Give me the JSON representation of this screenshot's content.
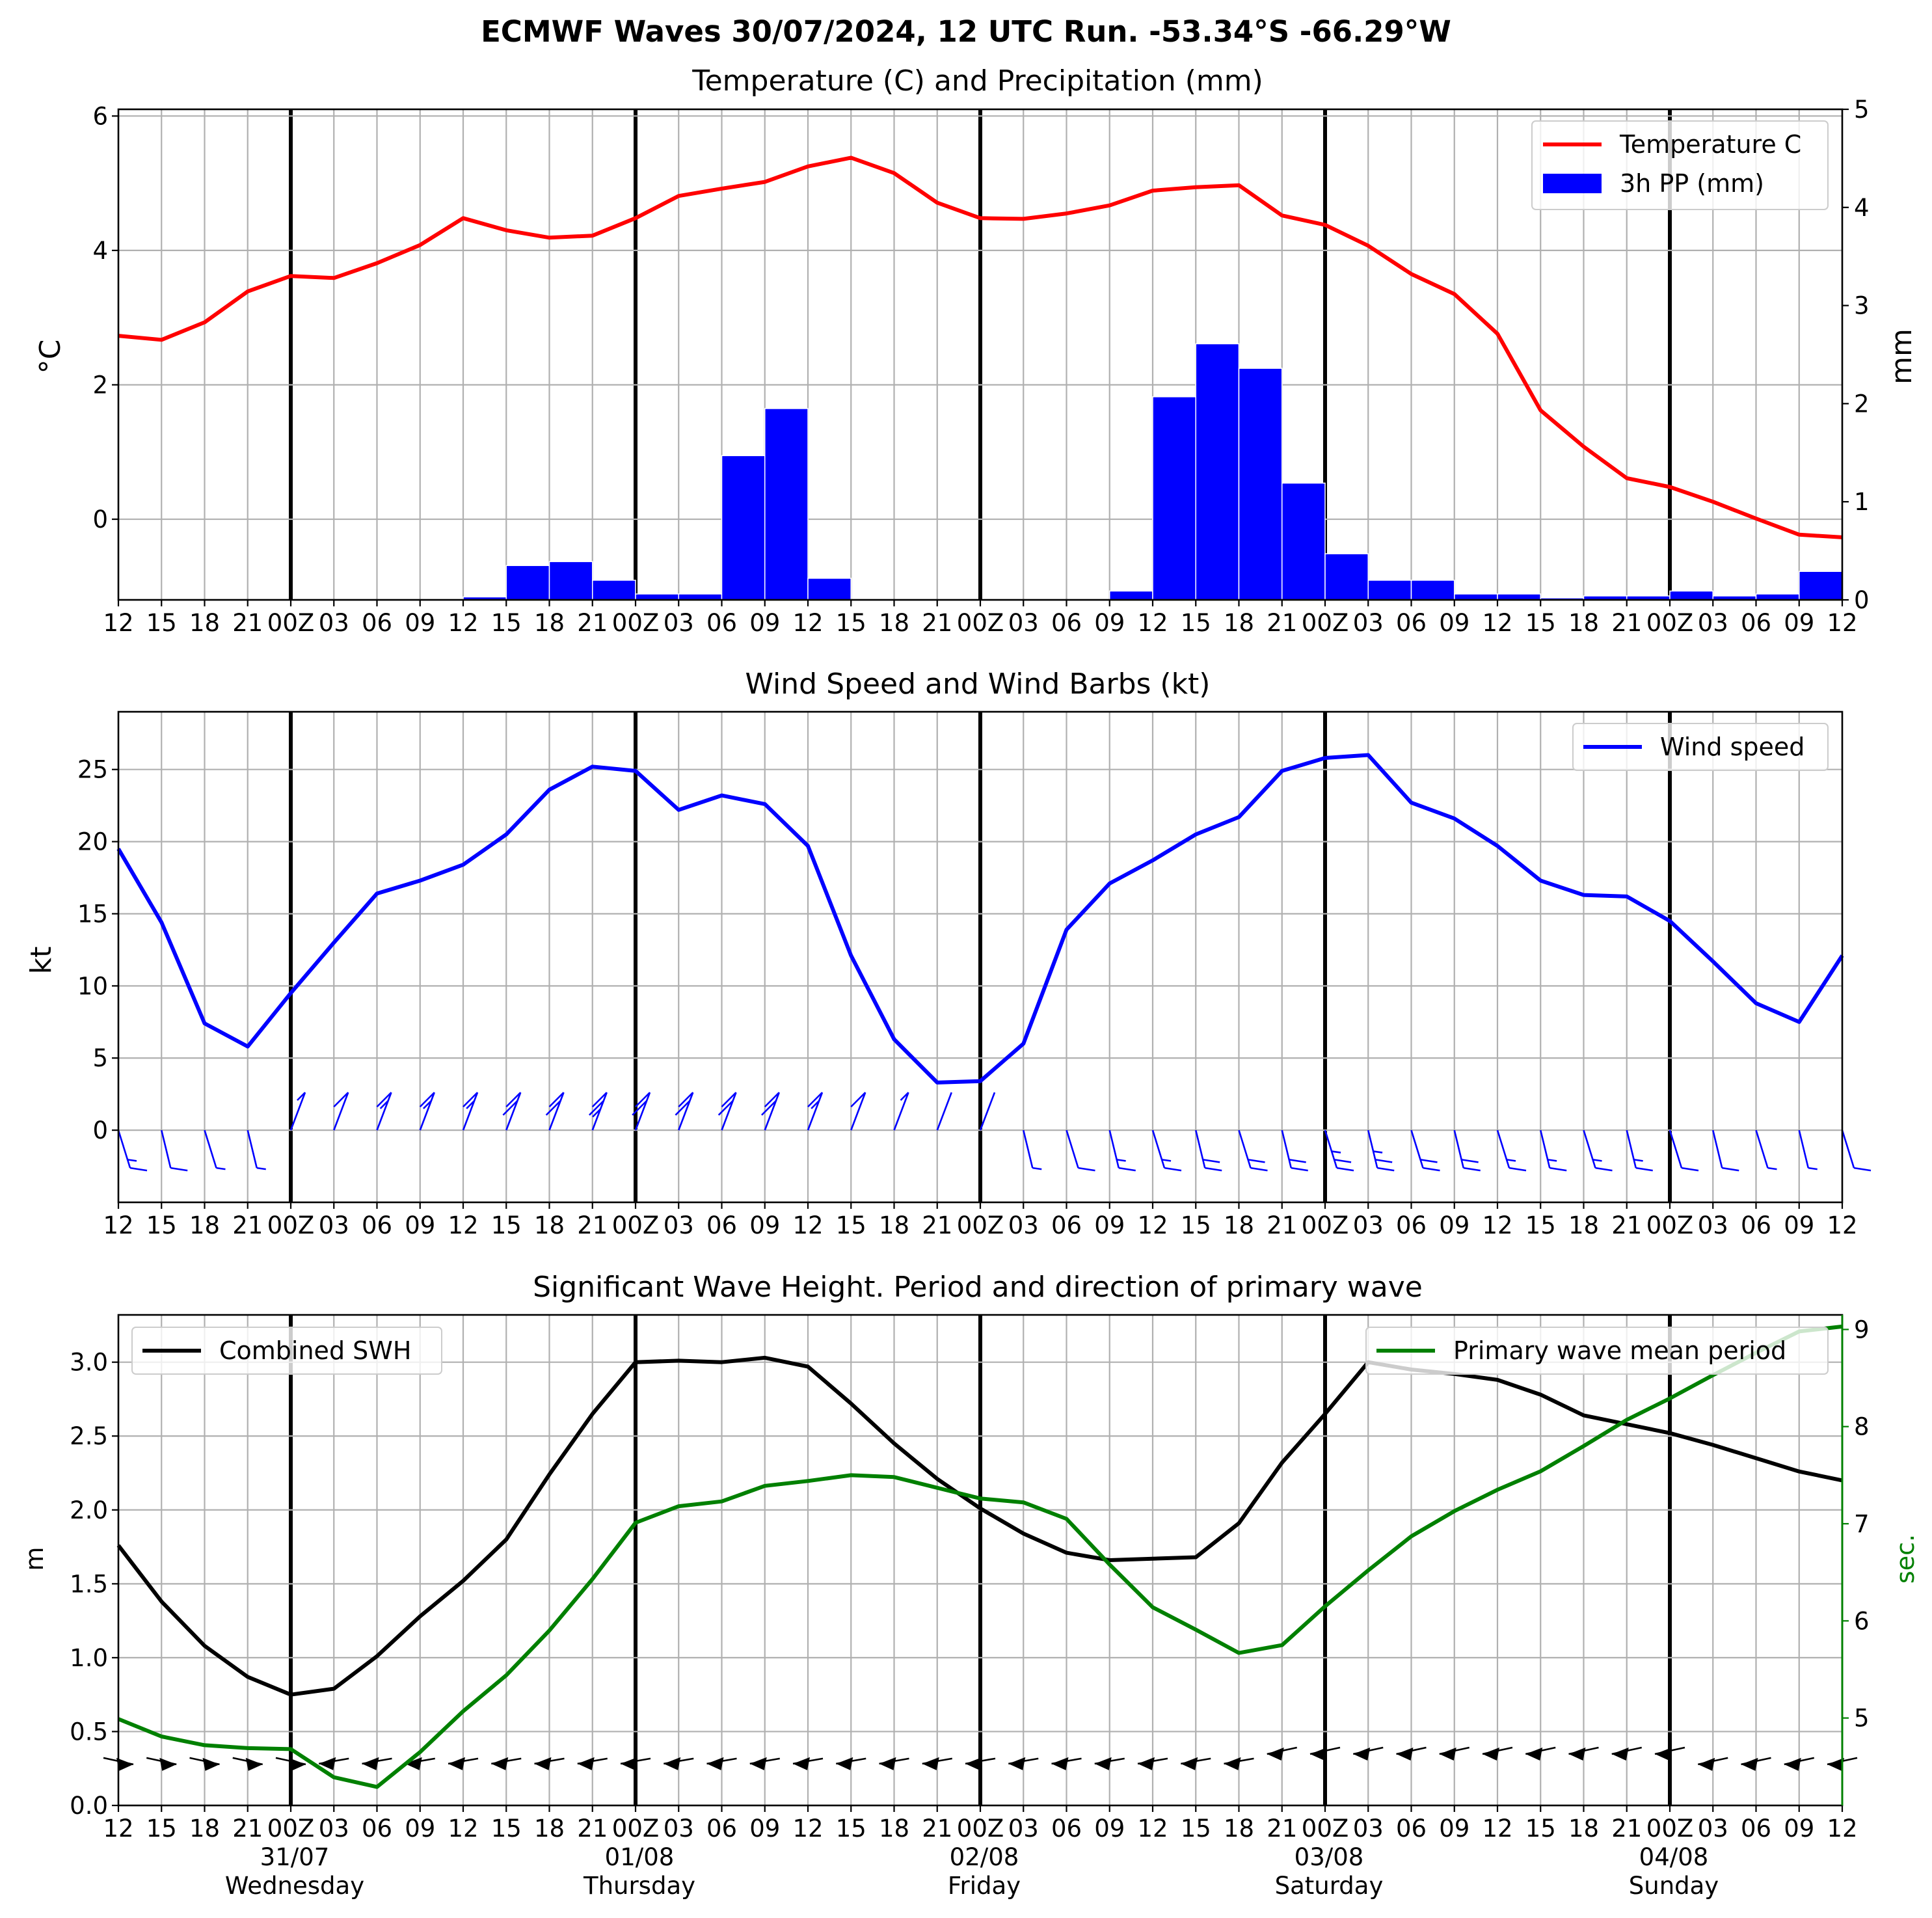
{
  "suptitle": "ECMWF Waves 30/07/2024, 12 UTC Run. -53.34°S -66.29°W",
  "x_tick_labels": [
    "12",
    "15",
    "18",
    "21",
    "00Z",
    "03",
    "06",
    "09",
    "12",
    "15",
    "18",
    "21",
    "00Z",
    "03",
    "06",
    "09",
    "12",
    "15",
    "18",
    "21",
    "00Z",
    "03",
    "06",
    "09",
    "12",
    "15",
    "18",
    "21",
    "00Z",
    "03",
    "06",
    "09",
    "12",
    "15",
    "18",
    "21",
    "00Z",
    "03",
    "06",
    "09",
    "12"
  ],
  "day_labels": [
    {
      "date": "31/07",
      "day": "Wednesday"
    },
    {
      "date": "01/08",
      "day": "Thursday"
    },
    {
      "date": "02/08",
      "day": "Friday"
    },
    {
      "date": "03/08",
      "day": "Saturday"
    },
    {
      "date": "04/08",
      "day": "Sunday"
    }
  ],
  "panels": {
    "temp": {
      "title": "Temperature (C) and Precipitation (mm)",
      "ylabel": "$^\\circ$C",
      "ylabel_right": "mm",
      "legend": [
        "Temperature C",
        "3h PP (mm)"
      ]
    },
    "wind": {
      "title": "Wind Speed and Wind Barbs (kt)",
      "ylabel": "kt",
      "legend": [
        "Wind speed"
      ]
    },
    "wave": {
      "title": "Significant Wave Height. Period and direction of primary wave",
      "ylabel": "m",
      "ylabel_right": "sec.",
      "legend_left": "Combined SWH",
      "legend_right": "Primary wave mean period"
    }
  },
  "colors": {
    "temperature": "#ff0000",
    "precip": "#0000ff",
    "wind": "#0000ff",
    "swh": "#000000",
    "period": "#008000",
    "grid": "#b0b0b0"
  },
  "chart_data": [
    {
      "type": "line",
      "title": "Temperature (C) and Precipitation (mm)",
      "xlabel": "",
      "ylabel": "°C",
      "ylim": [
        -1.2,
        6.1
      ],
      "yticks": [
        0,
        2,
        4,
        6
      ],
      "y2label": "mm",
      "y2lim": [
        0,
        5
      ],
      "y2ticks": [
        0,
        1,
        2,
        3,
        4,
        5
      ],
      "x_hours_from_run": [
        0,
        3,
        6,
        9,
        12,
        15,
        18,
        21,
        24,
        27,
        30,
        33,
        36,
        39,
        42,
        45,
        48,
        51,
        54,
        57,
        60,
        63,
        66,
        69,
        72,
        75,
        78,
        81,
        84,
        87,
        90,
        93,
        96,
        99,
        102,
        105,
        108,
        111,
        114,
        117,
        120
      ],
      "series": [
        {
          "name": "Temperature C",
          "axis": "left",
          "style": "line",
          "values": [
            2.73,
            2.67,
            2.93,
            3.39,
            3.62,
            3.59,
            3.81,
            4.08,
            4.48,
            4.3,
            4.19,
            4.22,
            4.48,
            4.81,
            4.92,
            5.02,
            5.25,
            5.38,
            5.15,
            4.71,
            4.48,
            4.47,
            4.55,
            4.67,
            4.89,
            4.94,
            4.97,
            4.52,
            4.38,
            4.07,
            3.65,
            3.35,
            2.76,
            1.62,
            1.08,
            0.61,
            0.48,
            0.26,
            0.01,
            -0.23,
            -0.27
          ]
        },
        {
          "name": "3h PP (mm)",
          "axis": "right",
          "style": "bar",
          "values": [
            0,
            0,
            0,
            0,
            0,
            0,
            0,
            0,
            0.03,
            0.35,
            0.39,
            0.2,
            0.06,
            0.06,
            1.47,
            1.95,
            0.22,
            0,
            0,
            0,
            0,
            0,
            0,
            0.09,
            2.07,
            2.61,
            2.36,
            1.19,
            0.47,
            0.2,
            0.2,
            0.06,
            0.06,
            0.02,
            0.04,
            0.04,
            0.09,
            0.04,
            0.06,
            0.29
          ]
        }
      ]
    },
    {
      "type": "line",
      "title": "Wind Speed and Wind Barbs (kt)",
      "xlabel": "",
      "ylabel": "kt",
      "ylim": [
        -5,
        29
      ],
      "yticks": [
        0,
        5,
        10,
        15,
        20,
        25
      ],
      "series": [
        {
          "name": "Wind speed",
          "values": [
            19.5,
            14.4,
            7.4,
            5.8,
            9.5,
            13.0,
            16.4,
            17.3,
            18.4,
            20.5,
            23.6,
            25.2,
            24.9,
            22.2,
            23.2,
            22.6,
            19.7,
            12.1,
            6.3,
            3.3,
            3.4,
            6.0,
            13.9,
            17.1,
            18.7,
            20.5,
            21.7,
            24.9,
            25.8,
            26.0,
            22.7,
            21.6,
            19.7,
            17.3,
            16.3,
            16.2,
            14.5,
            11.7,
            8.8,
            7.5,
            12.1
          ]
        }
      ]
    },
    {
      "type": "line",
      "title": "Significant Wave Height. Period and direction of primary wave",
      "xlabel": "",
      "ylabel": "m",
      "ylim": [
        0,
        3.32
      ],
      "yticks": [
        0.0,
        0.5,
        1.0,
        1.5,
        2.0,
        2.5,
        3.0
      ],
      "y2label": "sec.",
      "y2lim": [
        4.1,
        9.15
      ],
      "y2ticks": [
        5,
        6,
        7,
        8,
        9
      ],
      "series": [
        {
          "name": "Combined SWH",
          "axis": "left",
          "values": [
            1.76,
            1.38,
            1.08,
            0.87,
            0.75,
            0.79,
            1.01,
            1.28,
            1.52,
            1.8,
            2.24,
            2.65,
            3.0,
            3.01,
            3.0,
            3.03,
            2.97,
            2.72,
            2.45,
            2.21,
            2.01,
            1.84,
            1.71,
            1.66,
            1.67,
            1.68,
            1.91,
            2.32,
            2.65,
            3.0,
            2.95,
            2.92,
            2.88,
            2.78,
            2.64,
            2.58,
            2.52,
            2.44,
            2.35,
            2.26,
            2.2
          ]
        },
        {
          "name": "Primary wave mean period",
          "axis": "right",
          "values": [
            4.99,
            4.81,
            4.72,
            4.69,
            4.68,
            4.39,
            4.29,
            4.65,
            5.07,
            5.44,
            5.9,
            6.43,
            7.01,
            7.18,
            7.23,
            7.39,
            7.44,
            7.5,
            7.48,
            7.37,
            7.26,
            7.22,
            7.05,
            6.58,
            6.14,
            5.91,
            5.67,
            5.75,
            6.15,
            6.52,
            6.87,
            7.13,
            7.35,
            7.54,
            7.8,
            8.07,
            8.29,
            8.53,
            8.76,
            8.98,
            9.03
          ]
        }
      ]
    }
  ]
}
